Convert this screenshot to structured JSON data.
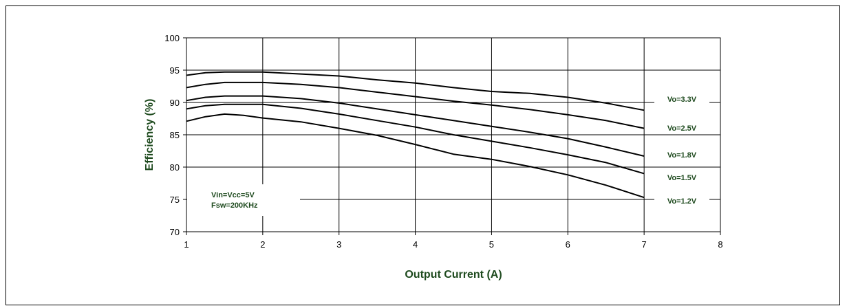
{
  "chart_data": {
    "type": "line",
    "xlabel": "Output Current (A)",
    "ylabel": "Efficiency  (%)",
    "xlim": [
      1,
      8
    ],
    "ylim": [
      70,
      100
    ],
    "x_ticks": [
      "1",
      "2",
      "3",
      "4",
      "5",
      "6",
      "7",
      "8"
    ],
    "y_ticks": [
      "70",
      "75",
      "80",
      "85",
      "90",
      "95",
      "100"
    ],
    "grid": true,
    "annotation": [
      "Vin=Vcc=5V",
      "Fsw=200KHz"
    ],
    "series": [
      {
        "name": "Vo=3.3V",
        "x": [
          1,
          1.25,
          1.5,
          2,
          2.5,
          3,
          3.5,
          4,
          4.5,
          5,
          5.5,
          6,
          6.5,
          7
        ],
        "y": [
          94.2,
          94.6,
          94.7,
          94.7,
          94.4,
          94.1,
          93.5,
          93.0,
          92.3,
          91.7,
          91.4,
          90.8,
          89.9,
          88.8
        ]
      },
      {
        "name": "Vo=2.5V",
        "x": [
          1,
          1.25,
          1.5,
          2,
          2.5,
          3,
          3.5,
          4,
          4.5,
          5,
          5.5,
          6,
          6.5,
          7
        ],
        "y": [
          92.3,
          92.8,
          93.1,
          93.1,
          92.8,
          92.3,
          91.6,
          90.9,
          90.2,
          89.6,
          88.9,
          88.1,
          87.2,
          86.0
        ]
      },
      {
        "name": "Vo=1.8V",
        "x": [
          1,
          1.25,
          1.5,
          2,
          2.5,
          3,
          3.5,
          4,
          4.5,
          5,
          5.5,
          6,
          6.5,
          7
        ],
        "y": [
          90.3,
          90.8,
          91.0,
          91.0,
          90.6,
          89.9,
          89.0,
          88.1,
          87.2,
          86.3,
          85.4,
          84.4,
          83.1,
          81.7
        ]
      },
      {
        "name": "Vo=1.5V",
        "x": [
          1,
          1.25,
          1.5,
          2,
          2.5,
          3,
          3.5,
          4,
          4.5,
          5,
          5.5,
          6,
          6.5,
          7
        ],
        "y": [
          89.0,
          89.5,
          89.7,
          89.7,
          89.1,
          88.2,
          87.2,
          86.2,
          85.0,
          84.0,
          83.0,
          81.9,
          80.7,
          79.0
        ]
      },
      {
        "name": "Vo=1.2V",
        "x": [
          1,
          1.25,
          1.5,
          1.75,
          2,
          2.5,
          3,
          3.5,
          4,
          4.5,
          5,
          5.5,
          6,
          6.5,
          7
        ],
        "y": [
          87.1,
          87.8,
          88.2,
          88.0,
          87.6,
          87.0,
          86.0,
          84.9,
          83.5,
          82.0,
          81.2,
          80.1,
          78.8,
          77.2,
          75.3
        ]
      }
    ]
  }
}
